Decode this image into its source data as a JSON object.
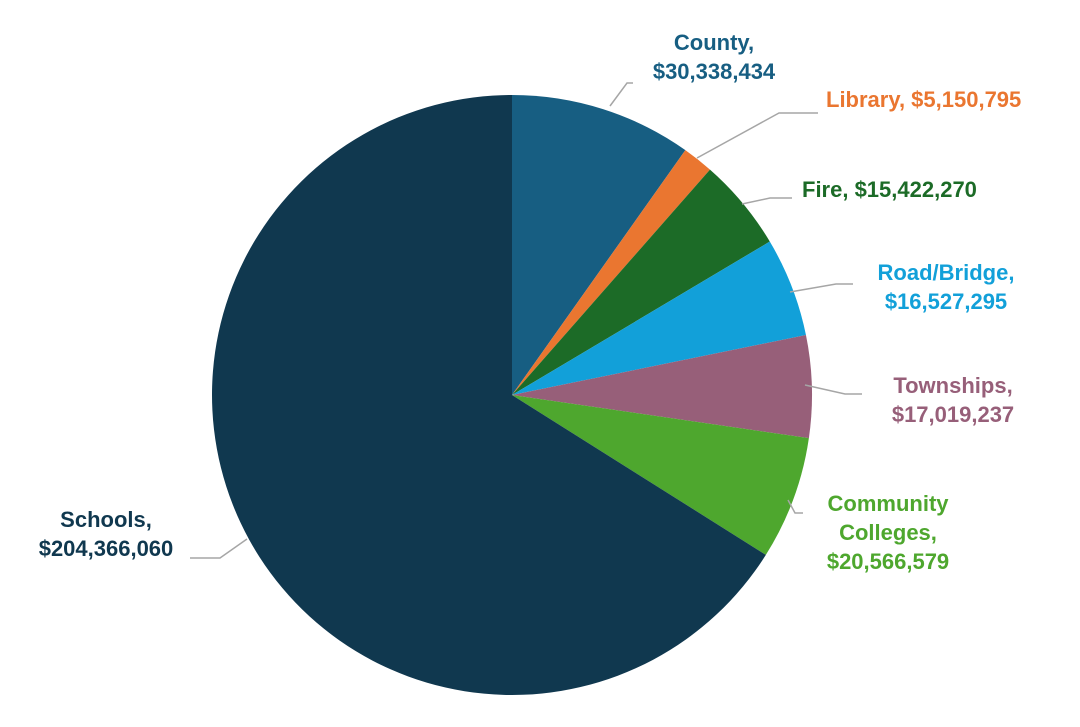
{
  "chart_data": {
    "type": "pie",
    "title": "",
    "start_angle_deg": 0,
    "direction": "clockwise",
    "slices": [
      {
        "name": "County",
        "display_lines": [
          "County,",
          "$30,338,434"
        ],
        "value": 30338434,
        "color": "#175e82",
        "label_color": "#175e82"
      },
      {
        "name": "Library",
        "display_lines": [
          "Library, $5,150,795"
        ],
        "value": 5150795,
        "color": "#ea7630",
        "label_color": "#ea7630"
      },
      {
        "name": "Fire",
        "display_lines": [
          "Fire, $15,422,270"
        ],
        "value": 15422270,
        "color": "#1c6b27",
        "label_color": "#1c6b27"
      },
      {
        "name": "Road/Bridge",
        "display_lines": [
          "Road/Bridge,",
          "$16,527,295"
        ],
        "value": 16527295,
        "color": "#12a0d9",
        "label_color": "#12a0d9"
      },
      {
        "name": "Townships",
        "display_lines": [
          "Townships,",
          "$17,019,237"
        ],
        "value": 17019237,
        "color": "#975f79",
        "label_color": "#975f79"
      },
      {
        "name": "Community Colleges",
        "display_lines": [
          "Community",
          "Colleges,",
          "$20,566,579"
        ],
        "value": 20566579,
        "color": "#4ea72e",
        "label_color": "#4ea72e"
      },
      {
        "name": "Schools",
        "display_lines": [
          "Schools,",
          "$204,366,060"
        ],
        "value": 204366060,
        "color": "#10384f",
        "label_color": "#10384f"
      }
    ],
    "leader_line_color": "#a6a6a6",
    "legend": "none"
  }
}
